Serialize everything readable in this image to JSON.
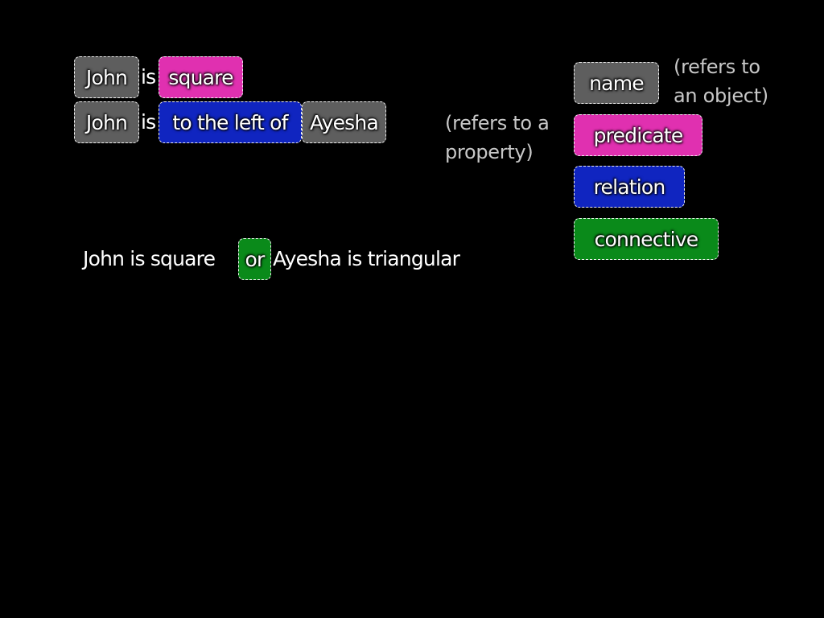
{
  "colors": {
    "name": "#5e5e5e",
    "predicate": "#e030b0",
    "relation": "#1025c0",
    "connective": "#0a8a1a",
    "background": "#000000",
    "note_text": "#c8c8c8"
  },
  "sentence1": {
    "t1": "John",
    "t2": "is",
    "t3": "square"
  },
  "sentence2": {
    "t1": "John",
    "t2": "is",
    "t3": "to the left of",
    "t4": "Ayesha"
  },
  "sentence3": {
    "t1": "John is square",
    "t2": "or",
    "t3": "Ayesha is triangular"
  },
  "legend": {
    "name": "name",
    "predicate": "predicate",
    "relation": "relation",
    "connective": "connective"
  },
  "notes": {
    "name": "(refers to\nan object)",
    "predicate": "(refers to a\nproperty)"
  }
}
